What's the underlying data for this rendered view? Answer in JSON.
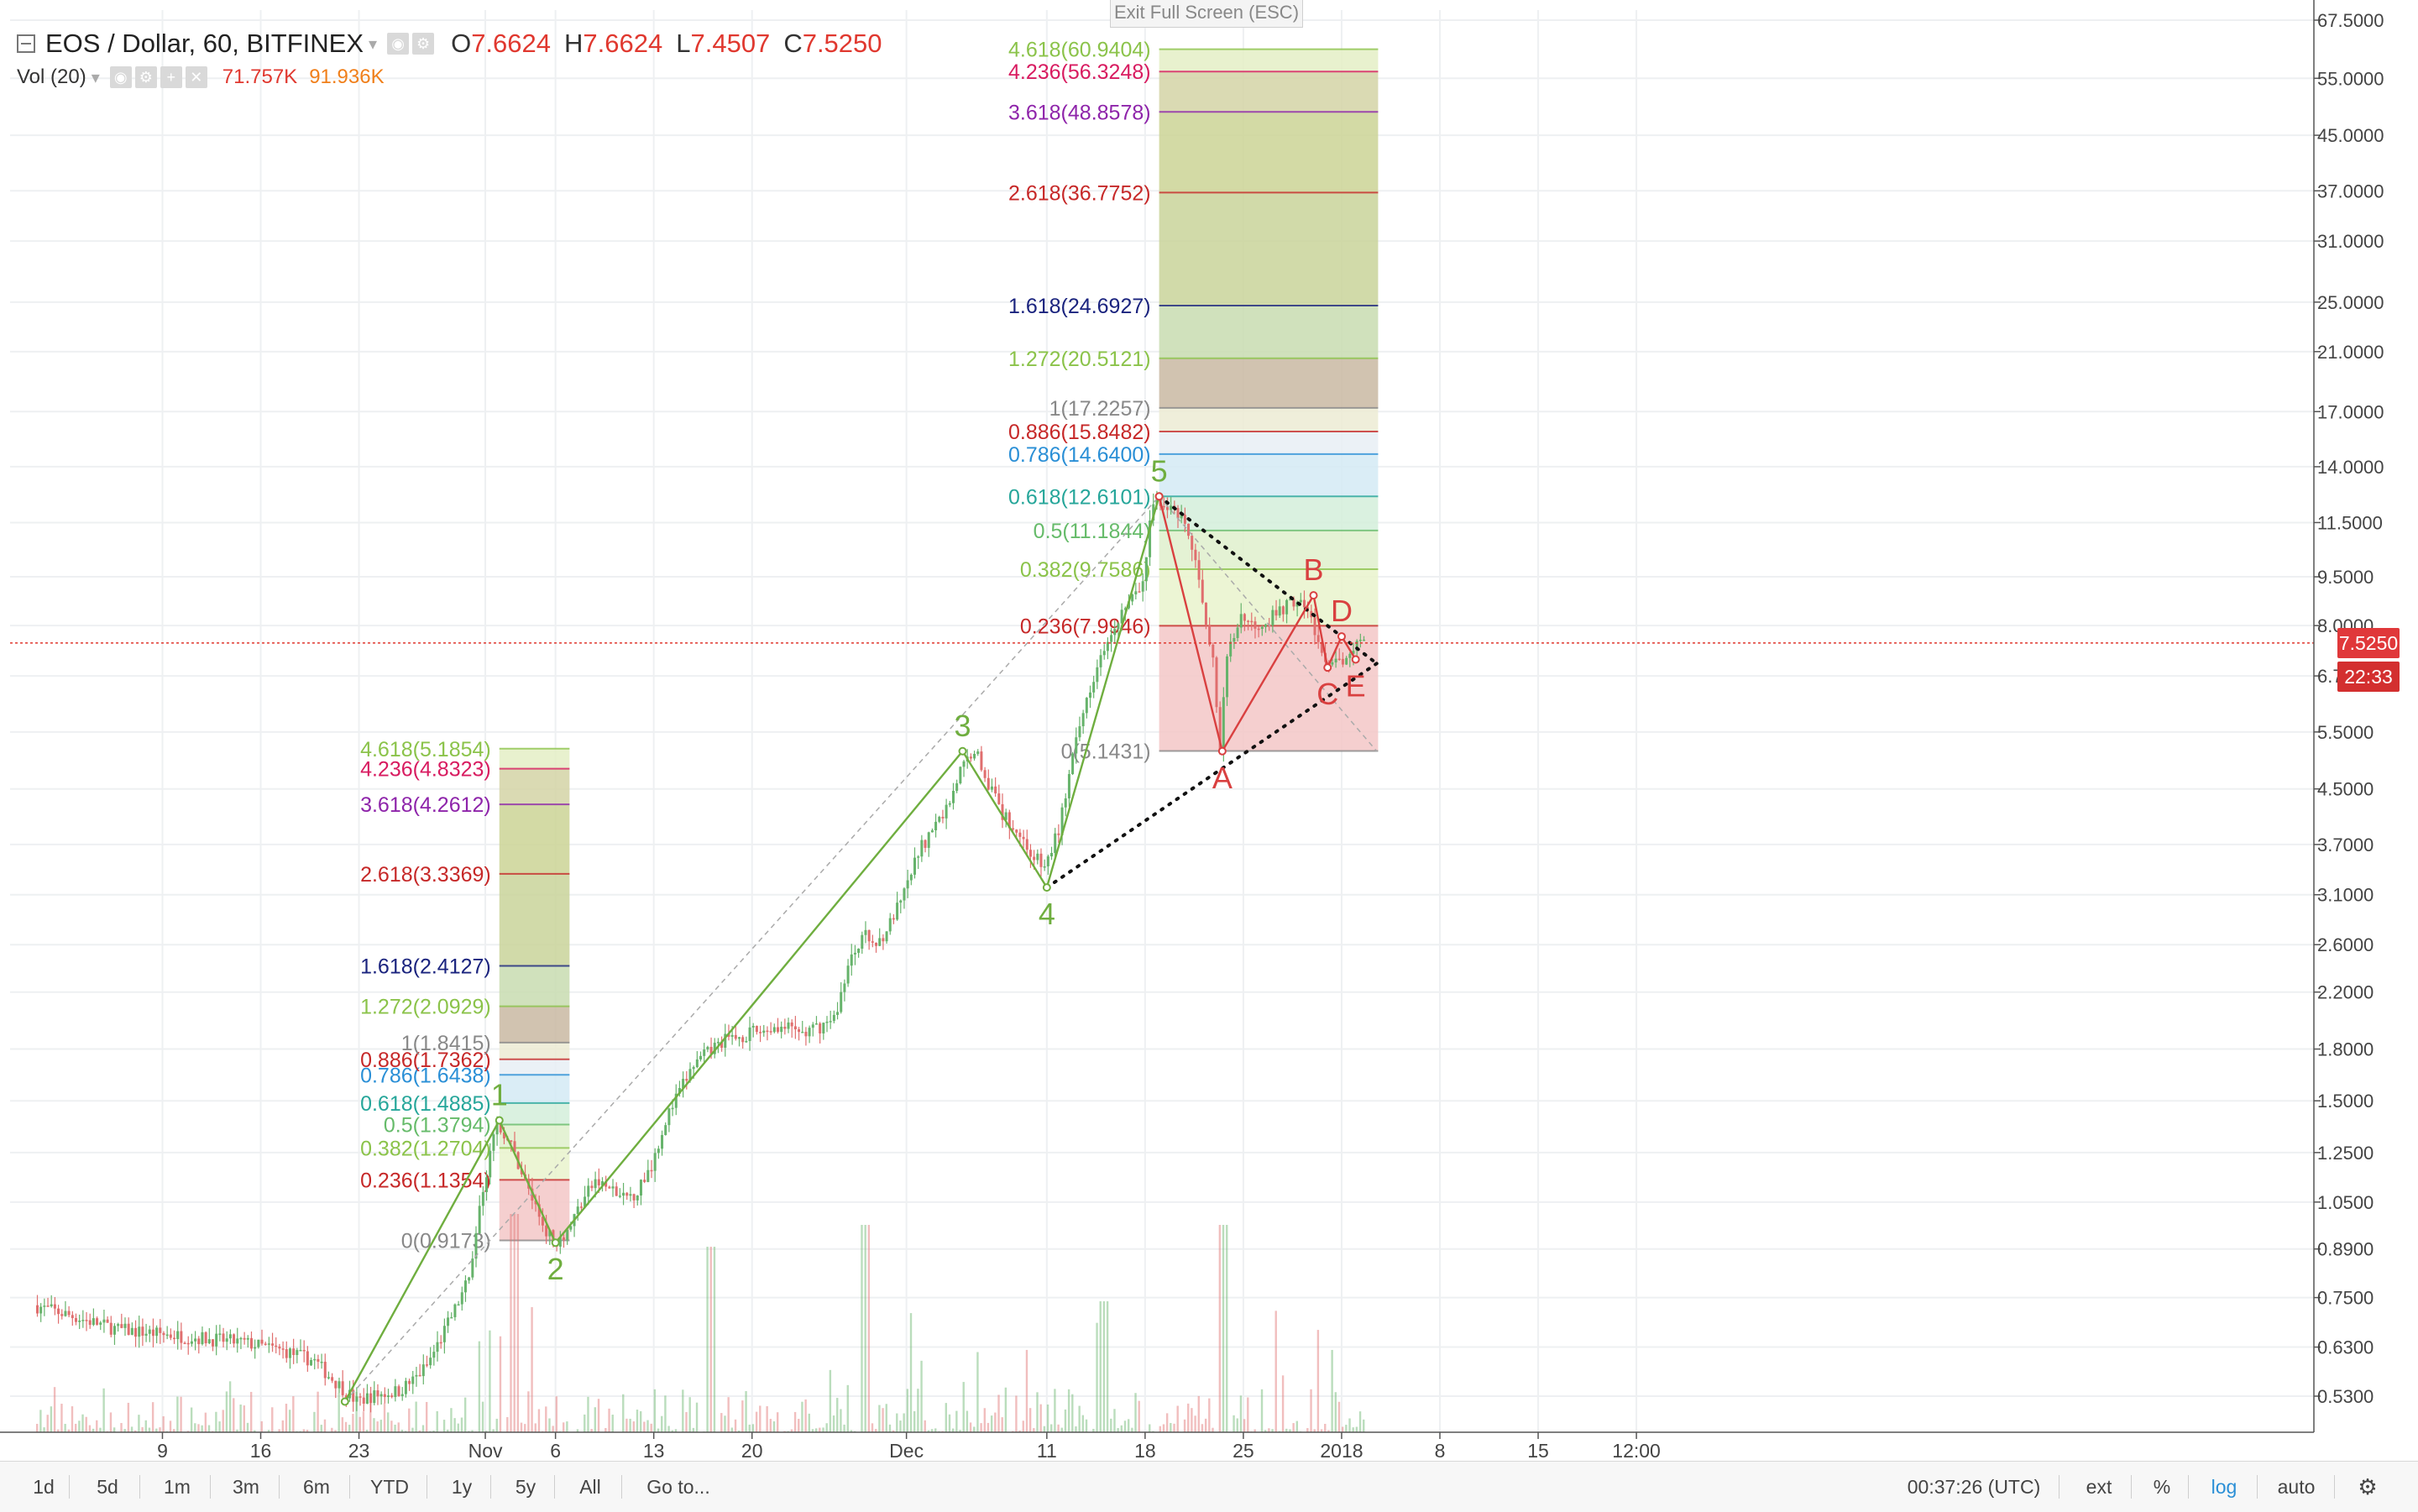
{
  "header": {
    "symbol": "EOS / Dollar, 60, BITFINEX",
    "open_label": "O",
    "open": "7.6624",
    "high_label": "H",
    "high": "7.6624",
    "low_label": "L",
    "low": "7.4507",
    "close_label": "C",
    "close": "7.5250",
    "vol_label": "Vol (20)",
    "vol_value": "71.757K",
    "vol_ma": "91.936K"
  },
  "exit_fullscreen": "Exit Full Screen (ESC)",
  "toolbar": {
    "ranges": [
      "1d",
      "5d",
      "1m",
      "3m",
      "6m",
      "YTD",
      "1y",
      "5y",
      "All"
    ],
    "goto": "Go to...",
    "clock": "00:37:26 (UTC)",
    "ext": "ext",
    "percent": "%",
    "log": "log",
    "auto": "auto"
  },
  "colors": {
    "up": "#66b36b",
    "down": "#e06e6e",
    "wave": "#6fae3f",
    "abcde": "#d94040",
    "fib_negative_zone": "#f2c4c4",
    "price_line": "#e0382f",
    "tag_last": "#e0383a",
    "tag_time": "#d32f2f"
  },
  "chart_data": {
    "type": "candlestick",
    "scale": "log",
    "y_axis_ticks": [
      "67.5000",
      "55.0000",
      "45.0000",
      "37.0000",
      "31.0000",
      "25.0000",
      "21.0000",
      "17.0000",
      "14.0000",
      "11.5000",
      "9.5000",
      "8.0000",
      "6.7000",
      "5.5000",
      "4.5000",
      "3.7000",
      "3.1000",
      "2.6000",
      "2.2000",
      "1.8000",
      "1.5000",
      "1.2500",
      "1.0500",
      "0.8900",
      "0.7500",
      "0.6300",
      "0.5300"
    ],
    "x_axis_ticks": [
      "9",
      "16",
      "23",
      "Nov",
      "6",
      "13",
      "20",
      "Dec",
      "11",
      "18",
      "25",
      "2018",
      "8",
      "15",
      "12:00"
    ],
    "x_axis_tick_days": [
      9,
      16,
      23,
      32,
      37,
      44,
      51,
      62,
      72,
      79,
      86,
      93,
      100,
      107,
      114
    ],
    "x_axis_units": "days from Oct 0, 2017 (Oct 9 = 9, Nov 1 = 32, Jan 1 = 93)",
    "last_price": 7.525,
    "last_price_label": "7.5250",
    "countdown_label": "22:33",
    "price_path": [
      [
        0,
        0.73
      ],
      [
        3,
        0.7
      ],
      [
        6,
        0.67
      ],
      [
        9,
        0.66
      ],
      [
        12,
        0.65
      ],
      [
        15,
        0.64
      ],
      [
        18,
        0.62
      ],
      [
        20,
        0.6
      ],
      [
        21,
        0.57
      ],
      [
        22,
        0.545
      ],
      [
        23,
        0.52
      ],
      [
        24,
        0.53
      ],
      [
        26,
        0.54
      ],
      [
        27,
        0.56
      ],
      [
        28,
        0.59
      ],
      [
        29,
        0.65
      ],
      [
        30,
        0.72
      ],
      [
        31,
        0.8
      ],
      [
        31.5,
        0.95
      ],
      [
        32,
        1.1
      ],
      [
        33,
        1.4
      ],
      [
        34,
        1.28
      ],
      [
        35,
        1.13
      ],
      [
        36,
        1.0
      ],
      [
        37,
        0.91
      ],
      [
        38,
        0.95
      ],
      [
        39,
        1.05
      ],
      [
        40,
        1.13
      ],
      [
        41,
        1.1
      ],
      [
        42,
        1.06
      ],
      [
        43,
        1.09
      ],
      [
        44,
        1.2
      ],
      [
        45,
        1.4
      ],
      [
        46,
        1.55
      ],
      [
        47,
        1.7
      ],
      [
        49,
        1.85
      ],
      [
        51,
        1.9
      ],
      [
        53,
        1.95
      ],
      [
        55,
        1.9
      ],
      [
        57,
        2.0
      ],
      [
        58,
        2.4
      ],
      [
        59,
        2.7
      ],
      [
        60,
        2.6
      ],
      [
        61,
        2.8
      ],
      [
        62,
        3.1
      ],
      [
        63,
        3.6
      ],
      [
        64,
        3.9
      ],
      [
        65,
        4.2
      ],
      [
        66,
        4.8
      ],
      [
        67,
        5.2
      ],
      [
        68,
        4.6
      ],
      [
        69,
        4.1
      ],
      [
        70,
        3.9
      ],
      [
        71,
        3.6
      ],
      [
        72,
        3.4
      ],
      [
        73,
        3.9
      ],
      [
        74,
        5.0
      ],
      [
        75,
        6.2
      ],
      [
        76,
        7.3
      ],
      [
        77,
        8.1
      ],
      [
        78,
        8.7
      ],
      [
        79,
        9.2
      ],
      [
        79.5,
        11.5
      ],
      [
        80,
        12.61
      ],
      [
        81,
        12.0
      ],
      [
        82,
        11.4
      ],
      [
        83,
        9.5
      ],
      [
        84,
        7.0
      ],
      [
        84.5,
        5.14
      ],
      [
        85,
        7.2
      ],
      [
        86,
        8.3
      ],
      [
        87,
        8.0
      ],
      [
        88,
        8.2
      ],
      [
        89,
        8.5
      ],
      [
        90,
        8.8
      ],
      [
        91,
        8.2
      ],
      [
        92,
        6.9
      ],
      [
        93,
        7.0
      ],
      [
        94,
        7.5
      ],
      [
        94.5,
        7.525
      ]
    ],
    "candle_noise_ratio": 0.05,
    "volume": {
      "baseline_max": 0.25,
      "spikes": [
        [
          34,
          1.0
        ],
        [
          48,
          0.85
        ],
        [
          59,
          0.95
        ],
        [
          76,
          0.6
        ],
        [
          84.5,
          0.95
        ]
      ]
    },
    "elliott_waves": {
      "labels": [
        "1",
        "2",
        "3",
        "4",
        "5"
      ],
      "points": [
        [
          22,
          0.52
        ],
        [
          33,
          1.4
        ],
        [
          37,
          0.91
        ],
        [
          66,
          5.14
        ],
        [
          72,
          3.18
        ],
        [
          80,
          12.61
        ]
      ]
    },
    "corrective_waves": {
      "labels": [
        "A",
        "B",
        "C",
        "D",
        "E"
      ],
      "points": [
        [
          80,
          12.61
        ],
        [
          84.5,
          5.14
        ],
        [
          91,
          8.9
        ],
        [
          92,
          6.9
        ],
        [
          93,
          7.7
        ],
        [
          94,
          7.1
        ]
      ]
    },
    "triangle_upper": [
      [
        80,
        12.61
      ],
      [
        95.5,
        7.0
      ]
    ],
    "triangle_lower": [
      [
        72,
        3.18
      ],
      [
        95.5,
        7.0
      ]
    ],
    "fib_extension_1": {
      "range_days": [
        33,
        38
      ],
      "levels": [
        {
          "ratio": "0",
          "value": 0.9173,
          "label": "0(0.9173)",
          "color": "#888888"
        },
        {
          "ratio": "0.236",
          "value": 1.1354,
          "label": "0.236(1.1354)",
          "color": "#c62828"
        },
        {
          "ratio": "0.382",
          "value": 1.2704,
          "label": "0.382(1.2704)",
          "color": "#8bc34a"
        },
        {
          "ratio": "0.5",
          "value": 1.3794,
          "label": "0.5(1.3794)",
          "color": "#66bb6a"
        },
        {
          "ratio": "0.618",
          "value": 1.4885,
          "label": "0.618(1.4885)",
          "color": "#26a69a"
        },
        {
          "ratio": "0.786",
          "value": 1.6438,
          "label": "0.786(1.6438)",
          "color": "#2a8fd6"
        },
        {
          "ratio": "0.886",
          "value": 1.7362,
          "label": "0.886(1.7362)",
          "color": "#c62828"
        },
        {
          "ratio": "1",
          "value": 1.8415,
          "label": "1(1.8415)",
          "color": "#888888"
        },
        {
          "ratio": "1.272",
          "value": 2.0929,
          "label": "1.272(2.0929)",
          "color": "#8bc34a"
        },
        {
          "ratio": "1.618",
          "value": 2.4127,
          "label": "1.618(2.4127)",
          "color": "#1a237e"
        },
        {
          "ratio": "2.618",
          "value": 3.3369,
          "label": "2.618(3.3369)",
          "color": "#c62828"
        },
        {
          "ratio": "3.618",
          "value": 4.2612,
          "label": "3.618(4.2612)",
          "color": "#8e24aa"
        },
        {
          "ratio": "4.236",
          "value": 4.8323,
          "label": "4.236(4.8323)",
          "color": "#d81b60"
        },
        {
          "ratio": "4.618",
          "value": 5.1854,
          "label": "4.618(5.1854)",
          "color": "#8bc34a"
        }
      ]
    },
    "fib_extension_2": {
      "range_days": [
        80,
        95.6
      ],
      "levels": [
        {
          "ratio": "0",
          "value": 5.1431,
          "label": "0(5.1431)",
          "color": "#888888"
        },
        {
          "ratio": "0.236",
          "value": 7.9946,
          "label": "0.236(7.9946)",
          "color": "#c62828"
        },
        {
          "ratio": "0.382",
          "value": 9.7586,
          "label": "0.382(9.7586)",
          "color": "#8bc34a"
        },
        {
          "ratio": "0.5",
          "value": 11.1844,
          "label": "0.5(11.1844)",
          "color": "#66bb6a"
        },
        {
          "ratio": "0.618",
          "value": 12.6101,
          "label": "0.618(12.6101)",
          "color": "#26a69a"
        },
        {
          "ratio": "0.786",
          "value": 14.64,
          "label": "0.786(14.6400)",
          "color": "#2a8fd6"
        },
        {
          "ratio": "0.886",
          "value": 15.8482,
          "label": "0.886(15.8482)",
          "color": "#c62828"
        },
        {
          "ratio": "1",
          "value": 17.2257,
          "label": "1(17.2257)",
          "color": "#888888"
        },
        {
          "ratio": "1.272",
          "value": 20.5121,
          "label": "1.272(20.5121)",
          "color": "#8bc34a"
        },
        {
          "ratio": "1.618",
          "value": 24.6927,
          "label": "1.618(24.6927)",
          "color": "#1a237e"
        },
        {
          "ratio": "2.618",
          "value": 36.7752,
          "label": "2.618(36.7752)",
          "color": "#c62828"
        },
        {
          "ratio": "3.618",
          "value": 48.8578,
          "label": "3.618(48.8578)",
          "color": "#8e24aa"
        },
        {
          "ratio": "4.236",
          "value": 56.3248,
          "label": "4.236(56.3248)",
          "color": "#d81b60"
        },
        {
          "ratio": "4.618",
          "value": 60.9404,
          "label": "4.618(60.9404)",
          "color": "#8bc34a"
        }
      ]
    },
    "fib_zone_fills": [
      "#f3c7c7",
      "#e9f3cd",
      "#dff0cd",
      "#d4eedb",
      "#d3eaf4",
      "#e7eef5",
      "#ecebd3",
      "#c9b8a2",
      "#c8dcb0",
      "#c9d39a",
      "#cbd495",
      "#d3d3a6",
      "#e4efc6"
    ]
  }
}
